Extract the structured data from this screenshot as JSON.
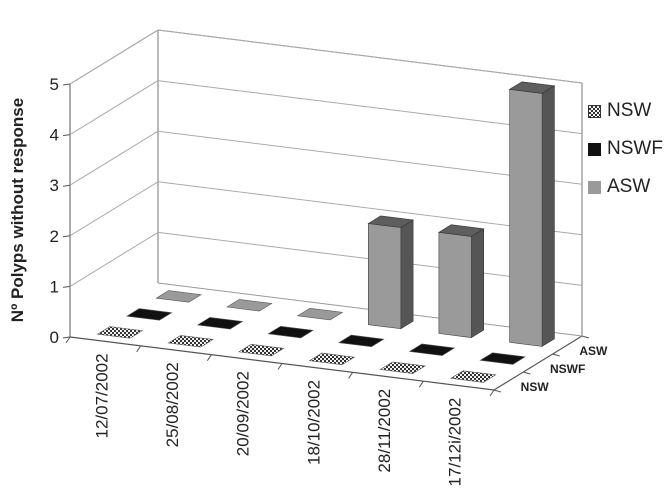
{
  "chart_data": {
    "type": "bar",
    "ylabel": "Nº Polyps without response",
    "ylim": [
      0,
      5
    ],
    "yticks": [
      "0",
      "1",
      "2",
      "3",
      "4",
      "5"
    ],
    "grid": true,
    "categories": [
      "12/07/2002",
      "25/08/2002",
      "20/09/2002",
      "18/10/2002",
      "28/11/2002",
      "17/12i/2002"
    ],
    "series": [
      {
        "name": "NSW",
        "values": [
          0,
          0,
          0,
          0,
          0,
          0
        ],
        "color": "#cfcfcf",
        "pattern": "checker"
      },
      {
        "name": "NSWF",
        "values": [
          0,
          0,
          0,
          0,
          0,
          0
        ],
        "color": "#111111"
      },
      {
        "name": "ASW",
        "values": [
          0,
          0,
          0,
          2,
          2,
          5
        ],
        "color": "#9a9a9a"
      }
    ],
    "depth_labels": [
      "ASW",
      "NSWF",
      "NSW"
    ],
    "legend_position": "right"
  }
}
